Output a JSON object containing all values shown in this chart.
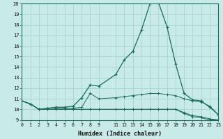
{
  "xlabel": "Humidex (Indice chaleur)",
  "bg_color": "#c8eae8",
  "grid_color": "#9ecece",
  "line_color": "#1a6b5a",
  "xlim": [
    0,
    23
  ],
  "ylim": [
    9,
    20
  ],
  "yticks": [
    9,
    10,
    11,
    12,
    13,
    14,
    15,
    16,
    17,
    18,
    19,
    20
  ],
  "xtick_labels": [
    "0",
    "1",
    "2",
    "3",
    "4",
    "5",
    "6",
    "7",
    "8",
    "9",
    "11",
    "12",
    "13",
    "14",
    "15",
    "16",
    "17",
    "18",
    "19",
    "20",
    "21",
    "22",
    "23"
  ],
  "xtick_pos": [
    0,
    1,
    2,
    3,
    4,
    5,
    6,
    7,
    8,
    9,
    11,
    12,
    13,
    14,
    15,
    16,
    17,
    18,
    19,
    20,
    21,
    22,
    23
  ],
  "series": [
    {
      "x": [
        0,
        1,
        2,
        3,
        4,
        5,
        6,
        7,
        8,
        9,
        11,
        12,
        13,
        14,
        15,
        16,
        17,
        18,
        19,
        20,
        21,
        22,
        23
      ],
      "y": [
        10.8,
        10.5,
        10.0,
        10.1,
        10.2,
        10.2,
        10.3,
        11.1,
        12.3,
        12.2,
        13.3,
        14.7,
        15.5,
        17.5,
        20.0,
        20.1,
        17.8,
        14.3,
        11.5,
        10.9,
        10.8,
        10.2,
        9.5
      ]
    },
    {
      "x": [
        0,
        1,
        2,
        3,
        4,
        5,
        6,
        7,
        8,
        9,
        11,
        12,
        13,
        14,
        15,
        16,
        17,
        18,
        19,
        20,
        21,
        22,
        23
      ],
      "y": [
        10.8,
        10.5,
        10.0,
        10.1,
        10.1,
        10.1,
        10.1,
        10.2,
        11.5,
        11.0,
        11.1,
        11.2,
        11.3,
        11.4,
        11.5,
        11.5,
        11.4,
        11.3,
        11.0,
        10.8,
        10.7,
        10.3,
        9.5
      ]
    },
    {
      "x": [
        0,
        1,
        2,
        3,
        4,
        5,
        6,
        7,
        8,
        9,
        11,
        12,
        13,
        14,
        15,
        16,
        17,
        18,
        19,
        20,
        21,
        22,
        23
      ],
      "y": [
        10.8,
        10.5,
        10.0,
        10.0,
        10.0,
        10.0,
        10.0,
        10.0,
        10.0,
        10.0,
        10.0,
        10.0,
        10.0,
        10.0,
        10.0,
        10.0,
        10.0,
        10.0,
        9.7,
        9.4,
        9.3,
        9.1,
        9.0
      ]
    },
    {
      "x": [
        0,
        1,
        2,
        3,
        4,
        5,
        6,
        7,
        8,
        9,
        11,
        12,
        13,
        14,
        15,
        16,
        17,
        18,
        19,
        20,
        21,
        22,
        23
      ],
      "y": [
        10.8,
        10.5,
        10.0,
        10.0,
        10.0,
        10.0,
        10.0,
        10.0,
        10.0,
        10.0,
        10.0,
        10.0,
        10.0,
        10.0,
        10.0,
        10.0,
        10.0,
        10.0,
        9.6,
        9.3,
        9.2,
        9.0,
        9.0
      ]
    }
  ]
}
